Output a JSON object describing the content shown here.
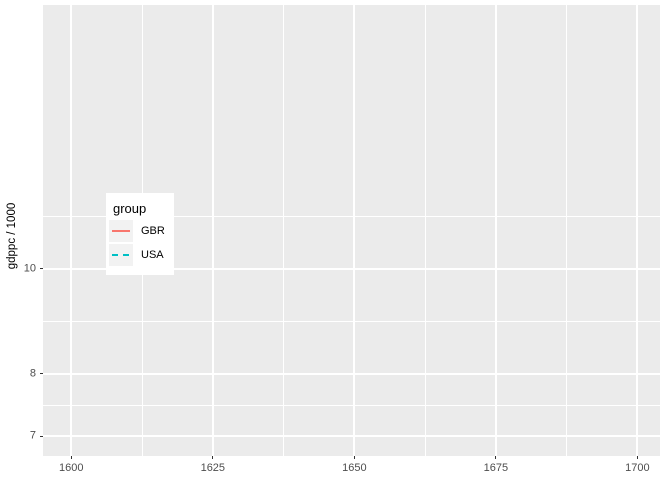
{
  "chart_data": {
    "type": "line",
    "title": "",
    "xlabel": "",
    "ylabel": "gdppc / 1000",
    "x_ticks": [
      1600,
      1625,
      1650,
      1675,
      1700
    ],
    "x_minor_ticks": [
      1612.5,
      1637.5,
      1662.5,
      1687.5
    ],
    "x_domain": [
      1595,
      1704
    ],
    "y_scale": "log10",
    "y_ticks": [
      10,
      8,
      7
    ],
    "y_minor_ticks": [
      11.18,
      8.94,
      7.48
    ],
    "y_domain": [
      6.71,
      17.55
    ],
    "grid": "major and minor white gridlines on grey panel",
    "legend": {
      "title": "group",
      "position": "inside-left"
    },
    "series": [
      {
        "name": "GBR",
        "color": "#F8766D",
        "linestyle": "solid",
        "x": [],
        "values": []
      },
      {
        "name": "USA",
        "color": "#00BFC4",
        "linestyle": "dashed",
        "x": [],
        "values": []
      }
    ],
    "visible_data_points": "none"
  },
  "colors": {
    "panel_background": "#EBEBEB",
    "gridline": "#FFFFFF",
    "axis_text": "#4D4D4D",
    "tick_mark": "#333333",
    "axis_title": "#000000",
    "legend_background": "#FFFFFF",
    "legend_key_background": "#F2F2F2"
  }
}
